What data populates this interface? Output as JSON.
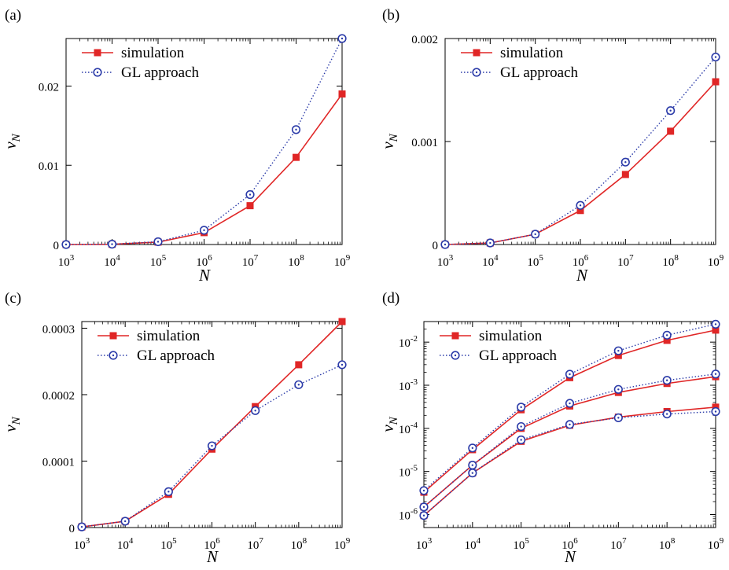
{
  "colors": {
    "simulation": "#e02626",
    "gl": "#2a3aa8"
  },
  "chart_data": [
    {
      "panel": "(a)",
      "type": "line",
      "xlabel": "N",
      "ylabel": "v_N",
      "x_scale": "log",
      "y_scale": "linear",
      "x": [
        1000,
        10000,
        100000,
        1000000,
        10000000,
        100000000,
        1000000000
      ],
      "xticks": [
        "10^3",
        "10^4",
        "10^5",
        "10^6",
        "10^7",
        "10^8",
        "10^9"
      ],
      "ylim": [
        0,
        0.026
      ],
      "yticks": [
        0,
        0.01,
        0.02
      ],
      "ytick_labels": [
        "0",
        "0.01",
        "0.02"
      ],
      "legend": {
        "position": "top-left",
        "entries": [
          "simulation",
          "GL approach"
        ]
      },
      "series": [
        {
          "name": "simulation",
          "values": [
            0,
            3e-05,
            0.0003,
            0.0015,
            0.0049,
            0.011,
            0.019
          ]
        },
        {
          "name": "GL approach",
          "values": [
            0,
            4e-05,
            0.00035,
            0.0018,
            0.0063,
            0.0145,
            0.026
          ]
        }
      ]
    },
    {
      "panel": "(b)",
      "type": "line",
      "xlabel": "N",
      "ylabel": "v_N",
      "x_scale": "log",
      "y_scale": "linear",
      "x": [
        1000,
        10000,
        100000,
        1000000,
        10000000,
        100000000,
        1000000000
      ],
      "xticks": [
        "10^3",
        "10^4",
        "10^5",
        "10^6",
        "10^7",
        "10^8",
        "10^9"
      ],
      "ylim": [
        0,
        0.002
      ],
      "yticks": [
        0,
        0.001,
        0.002
      ],
      "ytick_labels": [
        "0",
        "0.001",
        "0.002"
      ],
      "legend": {
        "position": "top-left",
        "entries": [
          "simulation",
          "GL approach"
        ]
      },
      "series": [
        {
          "name": "simulation",
          "values": [
            0,
            1.5e-05,
            0.0001,
            0.00033,
            0.00068,
            0.0011,
            0.00158
          ]
        },
        {
          "name": "GL approach",
          "values": [
            0,
            1.5e-05,
            0.0001,
            0.00038,
            0.0008,
            0.0013,
            0.00182
          ]
        }
      ]
    },
    {
      "panel": "(c)",
      "type": "line",
      "xlabel": "N",
      "ylabel": "v_N",
      "x_scale": "log",
      "y_scale": "linear",
      "x": [
        1000,
        10000,
        100000,
        1000000,
        10000000,
        100000000,
        1000000000
      ],
      "xticks": [
        "10^3",
        "10^4",
        "10^5",
        "10^6",
        "10^7",
        "10^8",
        "10^9"
      ],
      "ylim": [
        0,
        0.00031
      ],
      "yticks": [
        0,
        0.0001,
        0.0002,
        0.0003
      ],
      "ytick_labels": [
        "0",
        "0.0001",
        "0.0002",
        "0.0003"
      ],
      "legend": {
        "position": "top-left",
        "entries": [
          "simulation",
          "GL approach"
        ]
      },
      "series": [
        {
          "name": "simulation",
          "values": [
            1e-06,
            9.5e-06,
            5e-05,
            0.000118,
            0.000182,
            0.000245,
            0.00031
          ]
        },
        {
          "name": "GL approach",
          "values": [
            1e-06,
            9.5e-06,
            5.4e-05,
            0.000123,
            0.000176,
            0.000215,
            0.000245
          ]
        }
      ]
    },
    {
      "panel": "(d)",
      "type": "line",
      "xlabel": "N",
      "ylabel": "v_N",
      "x_scale": "log",
      "y_scale": "log",
      "x": [
        1000,
        10000,
        100000,
        1000000,
        10000000,
        100000000,
        1000000000
      ],
      "xticks": [
        "10^3",
        "10^4",
        "10^5",
        "10^6",
        "10^7",
        "10^8",
        "10^9"
      ],
      "ylim": [
        5e-07,
        0.03
      ],
      "yticks": [
        1e-06,
        1e-05,
        0.0001,
        0.001,
        0.01
      ],
      "ytick_labels": [
        "10^-6",
        "10^-5",
        "10^-4",
        "10^-3",
        "10^-2"
      ],
      "legend": {
        "position": "top-left",
        "entries": [
          "simulation",
          "GL approach"
        ]
      },
      "series": [
        {
          "name": "simulation",
          "values": [
            3.3e-06,
            3.2e-05,
            0.00027,
            0.0015,
            0.0049,
            0.011,
            0.019
          ]
        },
        {
          "name": "GL approach",
          "values": [
            3.6e-06,
            3.5e-05,
            0.00031,
            0.0018,
            0.0063,
            0.0145,
            0.026
          ]
        },
        {
          "name": "simulation",
          "values": [
            1.5e-06,
            1.4e-05,
            0.0001,
            0.00033,
            0.00068,
            0.0011,
            0.00158
          ]
        },
        {
          "name": "GL approach",
          "values": [
            1.5e-06,
            1.4e-05,
            0.00011,
            0.00038,
            0.0008,
            0.0013,
            0.00182
          ]
        },
        {
          "name": "simulation",
          "values": [
            9.5e-07,
            9.2e-06,
            5e-05,
            0.000118,
            0.000182,
            0.000245,
            0.00031
          ]
        },
        {
          "name": "GL approach",
          "values": [
            9.5e-07,
            9.2e-06,
            5.4e-05,
            0.000123,
            0.000176,
            0.000215,
            0.000245
          ]
        }
      ]
    }
  ]
}
